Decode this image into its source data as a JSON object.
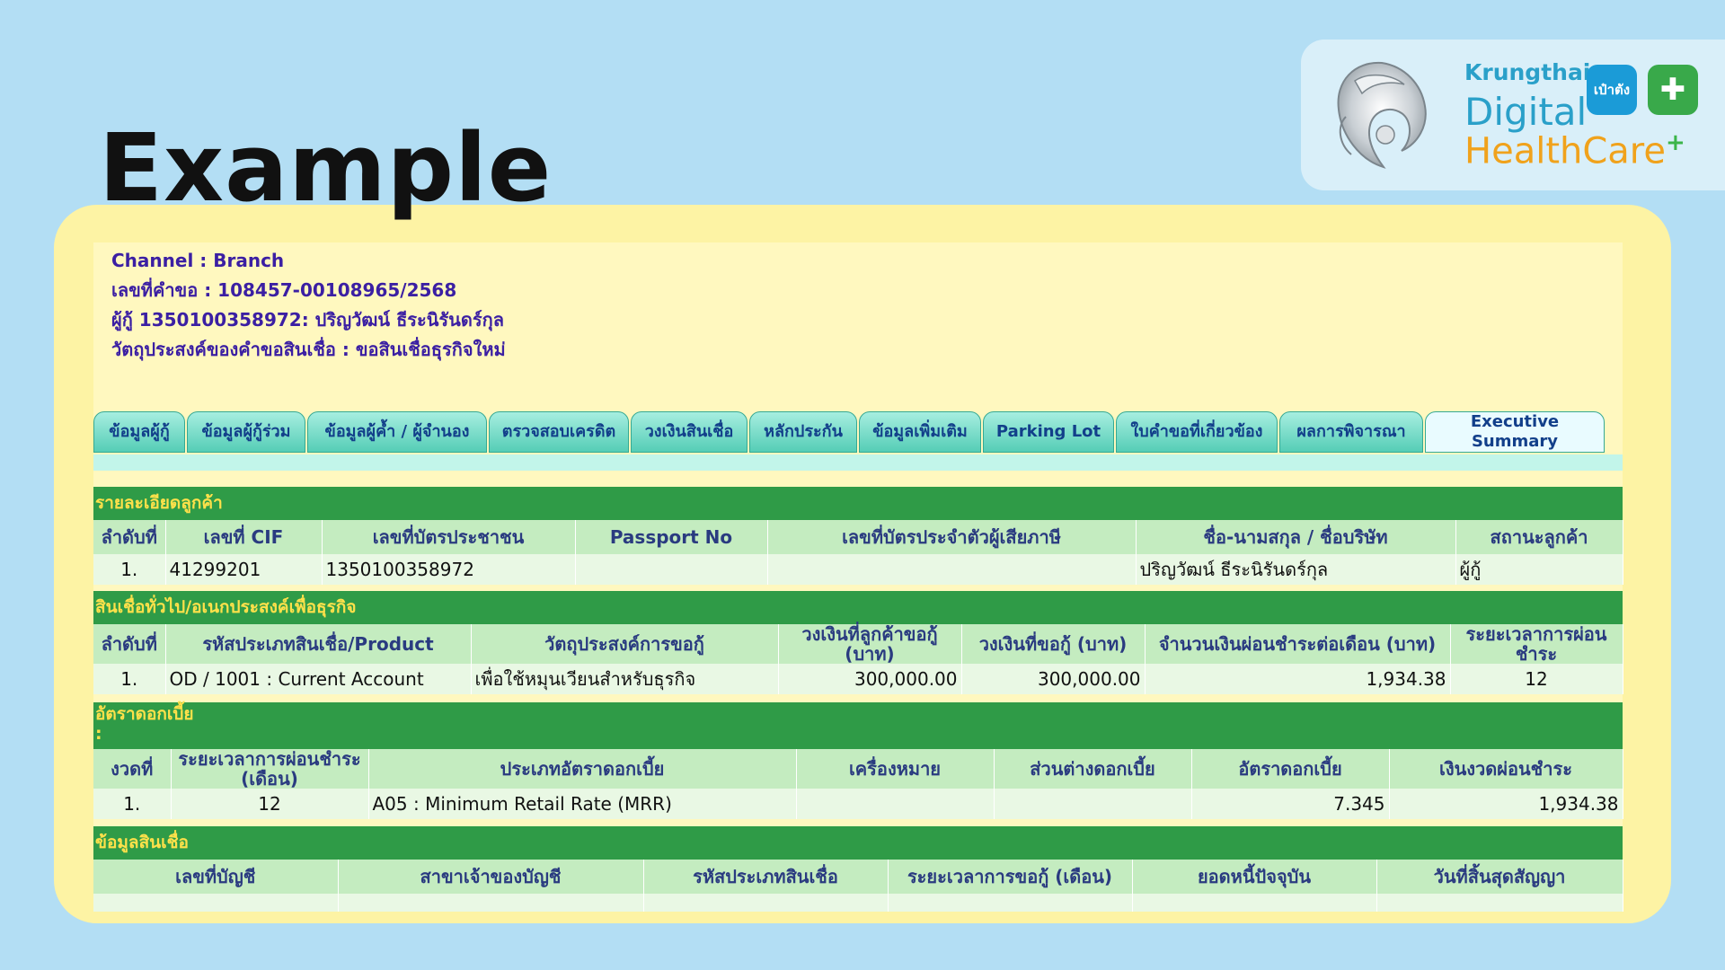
{
  "title": "Example",
  "brand": {
    "line1": "Krungthai",
    "line2": "Digital",
    "line3": "HealthCare",
    "plus": "+",
    "badge_pao": "เป๋าตัง",
    "badge_plus": "✚"
  },
  "info": {
    "channel": "Channel : Branch",
    "request_no": "เลขที่คำขอ  : 108457-00108965/2568",
    "borrower": "ผู้กู้   1350100358972: ปริญวัฒน์ ธีระนิรันดร์กุล",
    "purpose": "วัตถุประสงค์ของคำขอสินเชื่อ : ขอสินเชื่อธุรกิจใหม่"
  },
  "tabs": [
    {
      "label": "ข้อมูลผู้กู้",
      "width": 102
    },
    {
      "label": "ข้อมูลผู้กู้ร่วม",
      "width": 132
    },
    {
      "label": "ข้อมูลผู้ค้ำ / ผู้จำนอง",
      "width": 200
    },
    {
      "label": "ตรวจสอบเครดิต",
      "width": 156
    },
    {
      "label": "วงเงินสินเชื่อ",
      "width": 130
    },
    {
      "label": "หลักประกัน",
      "width": 120
    },
    {
      "label": "ข้อมูลเพิ่มเติม",
      "width": 136
    },
    {
      "label": "Parking Lot",
      "width": 146
    },
    {
      "label": "ใบคำขอที่เกี่ยวข้อง",
      "width": 180
    },
    {
      "label": "ผลการพิจารณา",
      "width": 160
    },
    {
      "label": "Executive Summary",
      "width": 200,
      "active": true
    }
  ],
  "customer": {
    "heading": "รายละเอียดลูกค้า",
    "columns": [
      "ลำดับที่",
      "เลขที่ CIF",
      "เลขที่บัตรประชาชน",
      "Passport No",
      "เลขที่บัตรประจำตัวผู้เสียภาษี",
      "ชื่อ-นามสกุล / ชื่อบริษัท",
      "สถานะลูกค้า"
    ],
    "rows": [
      [
        "1.",
        "41299201",
        "1350100358972",
        "",
        "",
        "ปริญวัฒน์ ธีระนิรันดร์กุล",
        "ผู้กู้"
      ]
    ]
  },
  "loan": {
    "heading": "สินเชื่อทั่วไป/อเนกประสงค์เพื่อธุรกิจ",
    "columns": [
      "ลำดับที่",
      "รหัสประเภทสินเชื่อ/Product",
      "วัตถุประสงค์การขอกู้",
      "วงเงินที่ลูกค้าขอกู้ (บาท)",
      "วงเงินที่ขอกู้ (บาท)",
      "จำนวนเงินผ่อนชำระต่อเดือน (บาท)",
      "ระยะเวลาการผ่อนชำระ"
    ],
    "rows": [
      [
        "1.",
        "OD / 1001 : Current Account",
        "เพื่อใช้หมุนเวียนสำหรับธุรกิจ",
        "300,000.00",
        "300,000.00",
        "1,934.38",
        "12"
      ]
    ]
  },
  "rate": {
    "heading": "อัตราดอกเบี้ย",
    "heading_suffix": ":",
    "columns": [
      "งวดที่",
      "ระยะเวลาการผ่อนชำระ (เดือน)",
      "ประเภทอัตราดอกเบี้ย",
      "เครื่องหมาย",
      "ส่วนต่างดอกเบี้ย",
      "อัตราดอกเบี้ย",
      "เงินงวดผ่อนชำระ"
    ],
    "rows": [
      [
        "1.",
        "12",
        "A05 : Minimum Retail Rate (MRR)",
        "",
        "",
        "7.345",
        "1,934.38"
      ]
    ]
  },
  "credit": {
    "heading": "ข้อมูลสินเชื่อ",
    "columns": [
      "เลขที่บัญชี",
      "สาขาเจ้าของบัญชี",
      "รหัสประเภทสินเชื่อ",
      "ระยะเวลาการขอกู้ (เดือน)",
      "ยอดหนี้ปัจจุบัน",
      "วันที่สิ้นสุดสัญญา"
    ]
  }
}
